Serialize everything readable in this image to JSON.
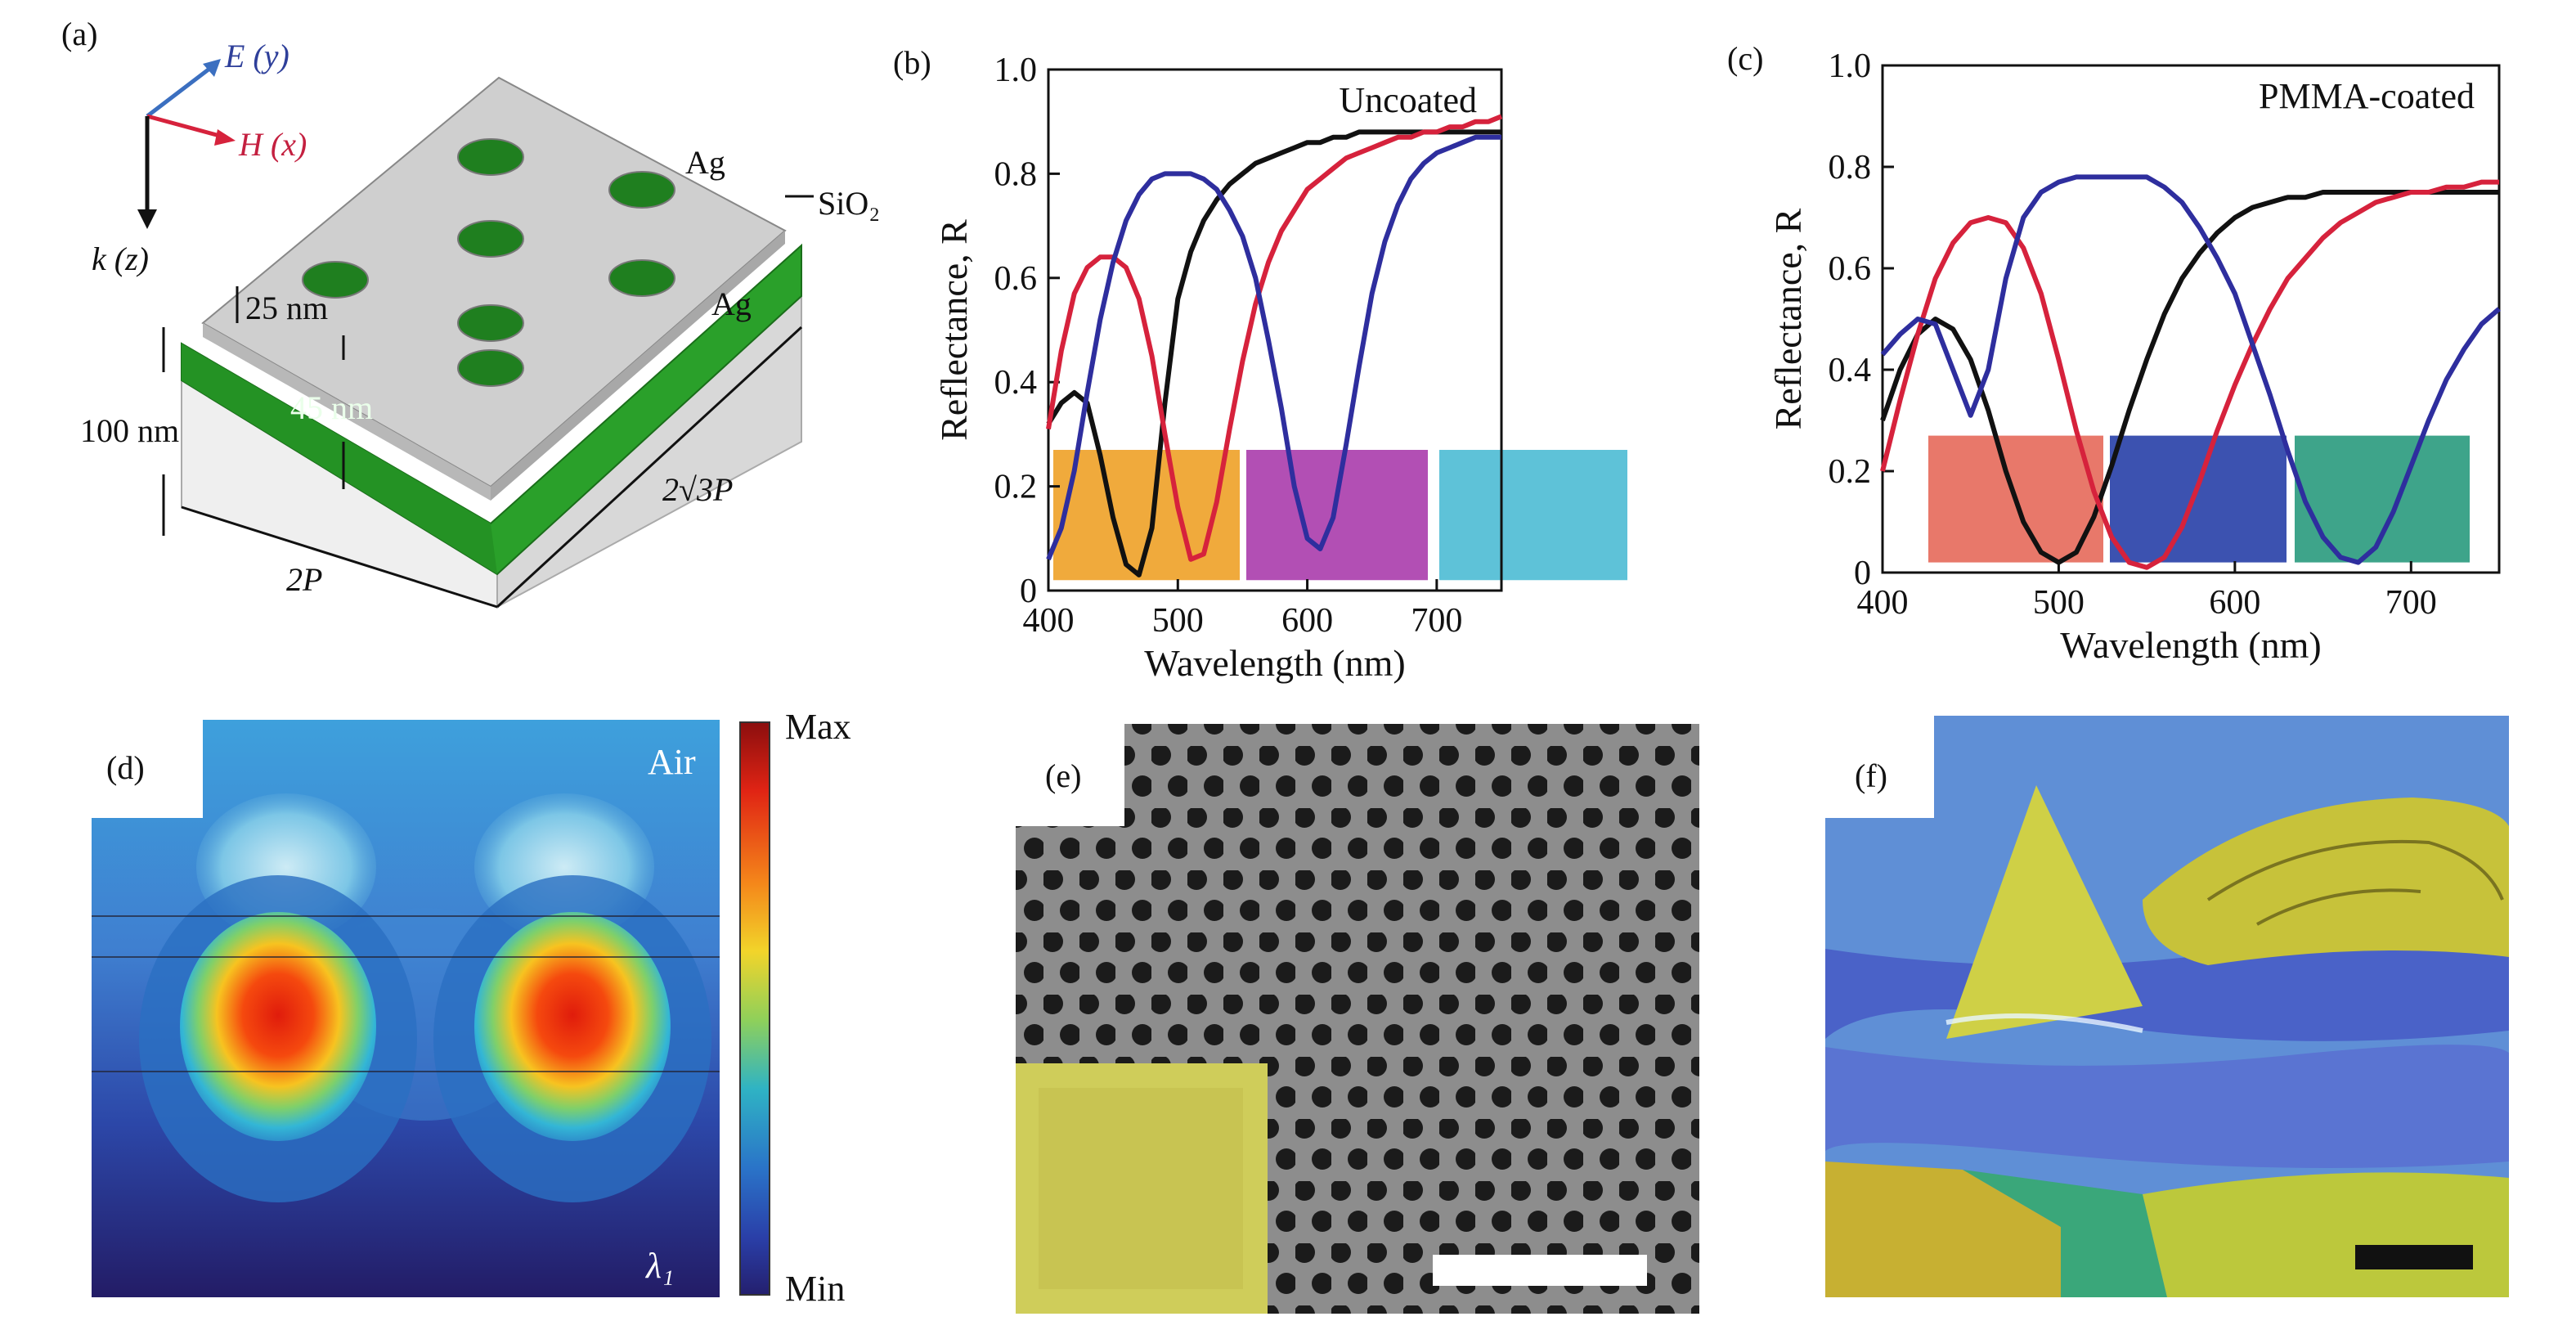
{
  "panels": {
    "a": {
      "label": "(a)",
      "e_axis": "E (y)",
      "h_axis": "H (x)",
      "k_axis": "k (z)",
      "ag_top": "Ag",
      "sio2": "SiO₂",
      "ag_bottom": "Ag",
      "thick_25": "25 nm",
      "thick_45": "45 nm",
      "thick_100": "100 nm",
      "dim_2p": "2P",
      "dim_2r3p": "2√3P"
    },
    "d": {
      "label": "(d)",
      "air": "Air",
      "lambda": "λ₁",
      "cb_max": "Max",
      "cb_min": "Min"
    },
    "e": {
      "label": "(e)"
    },
    "f": {
      "label": "(f)"
    }
  },
  "colors": {
    "black_curve": "#111111",
    "red_curve": "#d6223c",
    "blue_curve": "#2e2e9e",
    "swatch_b": [
      "#f0aa3c",
      "#b24fb4",
      "#5ec2d8"
    ],
    "swatch_c": [
      "#e8786a",
      "#3c52b0",
      "#3ea48a"
    ]
  },
  "chart_data": [
    {
      "type": "line",
      "panel_label": "(b)",
      "annotation": "Uncoated",
      "xlabel": "Wavelength (nm)",
      "ylabel": "Reflectance, R",
      "xlim": [
        400,
        750
      ],
      "ylim": [
        0,
        1.0
      ],
      "xticks": [
        "400",
        "500",
        "600",
        "700"
      ],
      "yticks": [
        "0",
        "0.2",
        "0.4",
        "0.6",
        "0.8",
        "1.0"
      ],
      "x": [
        400,
        410,
        420,
        430,
        440,
        450,
        460,
        470,
        480,
        490,
        500,
        510,
        520,
        530,
        540,
        550,
        560,
        570,
        580,
        590,
        600,
        610,
        620,
        630,
        640,
        650,
        660,
        670,
        680,
        690,
        700,
        710,
        720,
        730,
        740,
        750
      ],
      "series": [
        {
          "color": "black",
          "values": [
            0.32,
            0.36,
            0.38,
            0.36,
            0.26,
            0.14,
            0.05,
            0.03,
            0.12,
            0.36,
            0.56,
            0.65,
            0.71,
            0.75,
            0.78,
            0.8,
            0.82,
            0.83,
            0.84,
            0.85,
            0.86,
            0.86,
            0.87,
            0.87,
            0.88,
            0.88,
            0.88,
            0.88,
            0.88,
            0.88,
            0.88,
            0.88,
            0.88,
            0.88,
            0.88,
            0.88
          ]
        },
        {
          "color": "red",
          "values": [
            0.31,
            0.46,
            0.57,
            0.62,
            0.64,
            0.64,
            0.62,
            0.56,
            0.45,
            0.3,
            0.16,
            0.06,
            0.07,
            0.17,
            0.31,
            0.44,
            0.55,
            0.63,
            0.69,
            0.73,
            0.77,
            0.79,
            0.81,
            0.83,
            0.84,
            0.85,
            0.86,
            0.87,
            0.87,
            0.88,
            0.88,
            0.89,
            0.89,
            0.9,
            0.9,
            0.91
          ]
        },
        {
          "color": "blue",
          "values": [
            0.06,
            0.12,
            0.23,
            0.38,
            0.52,
            0.63,
            0.71,
            0.76,
            0.79,
            0.8,
            0.8,
            0.8,
            0.79,
            0.77,
            0.73,
            0.68,
            0.6,
            0.48,
            0.35,
            0.2,
            0.1,
            0.08,
            0.14,
            0.28,
            0.43,
            0.57,
            0.67,
            0.74,
            0.79,
            0.82,
            0.84,
            0.85,
            0.86,
            0.87,
            0.87,
            0.87
          ]
        }
      ]
    },
    {
      "type": "line",
      "panel_label": "(c)",
      "annotation": "PMMA-coated",
      "xlabel": "Wavelength (nm)",
      "ylabel": "Reflectance, R",
      "xlim": [
        400,
        750
      ],
      "ylim": [
        0,
        1.0
      ],
      "xticks": [
        "400",
        "500",
        "600",
        "700"
      ],
      "yticks": [
        "0",
        "0.2",
        "0.4",
        "0.6",
        "0.8",
        "1.0"
      ],
      "x": [
        400,
        410,
        420,
        430,
        440,
        450,
        460,
        470,
        480,
        490,
        500,
        510,
        520,
        530,
        540,
        550,
        560,
        570,
        580,
        590,
        600,
        610,
        620,
        630,
        640,
        650,
        660,
        670,
        680,
        690,
        700,
        710,
        720,
        730,
        740,
        750
      ],
      "series": [
        {
          "color": "black",
          "values": [
            0.3,
            0.4,
            0.47,
            0.5,
            0.48,
            0.42,
            0.32,
            0.2,
            0.1,
            0.04,
            0.02,
            0.04,
            0.11,
            0.21,
            0.32,
            0.42,
            0.51,
            0.58,
            0.63,
            0.67,
            0.7,
            0.72,
            0.73,
            0.74,
            0.74,
            0.75,
            0.75,
            0.75,
            0.75,
            0.75,
            0.75,
            0.75,
            0.75,
            0.75,
            0.75,
            0.75
          ]
        },
        {
          "color": "red",
          "values": [
            0.2,
            0.34,
            0.47,
            0.58,
            0.65,
            0.69,
            0.7,
            0.69,
            0.64,
            0.55,
            0.42,
            0.28,
            0.16,
            0.07,
            0.02,
            0.01,
            0.03,
            0.09,
            0.18,
            0.28,
            0.37,
            0.45,
            0.52,
            0.58,
            0.62,
            0.66,
            0.69,
            0.71,
            0.73,
            0.74,
            0.75,
            0.75,
            0.76,
            0.76,
            0.77,
            0.77
          ]
        },
        {
          "color": "blue",
          "values": [
            0.43,
            0.47,
            0.5,
            0.49,
            0.4,
            0.31,
            0.4,
            0.58,
            0.7,
            0.75,
            0.77,
            0.78,
            0.78,
            0.78,
            0.78,
            0.78,
            0.76,
            0.73,
            0.68,
            0.62,
            0.55,
            0.45,
            0.35,
            0.24,
            0.14,
            0.07,
            0.03,
            0.02,
            0.05,
            0.12,
            0.21,
            0.3,
            0.38,
            0.44,
            0.49,
            0.52
          ]
        }
      ]
    }
  ]
}
